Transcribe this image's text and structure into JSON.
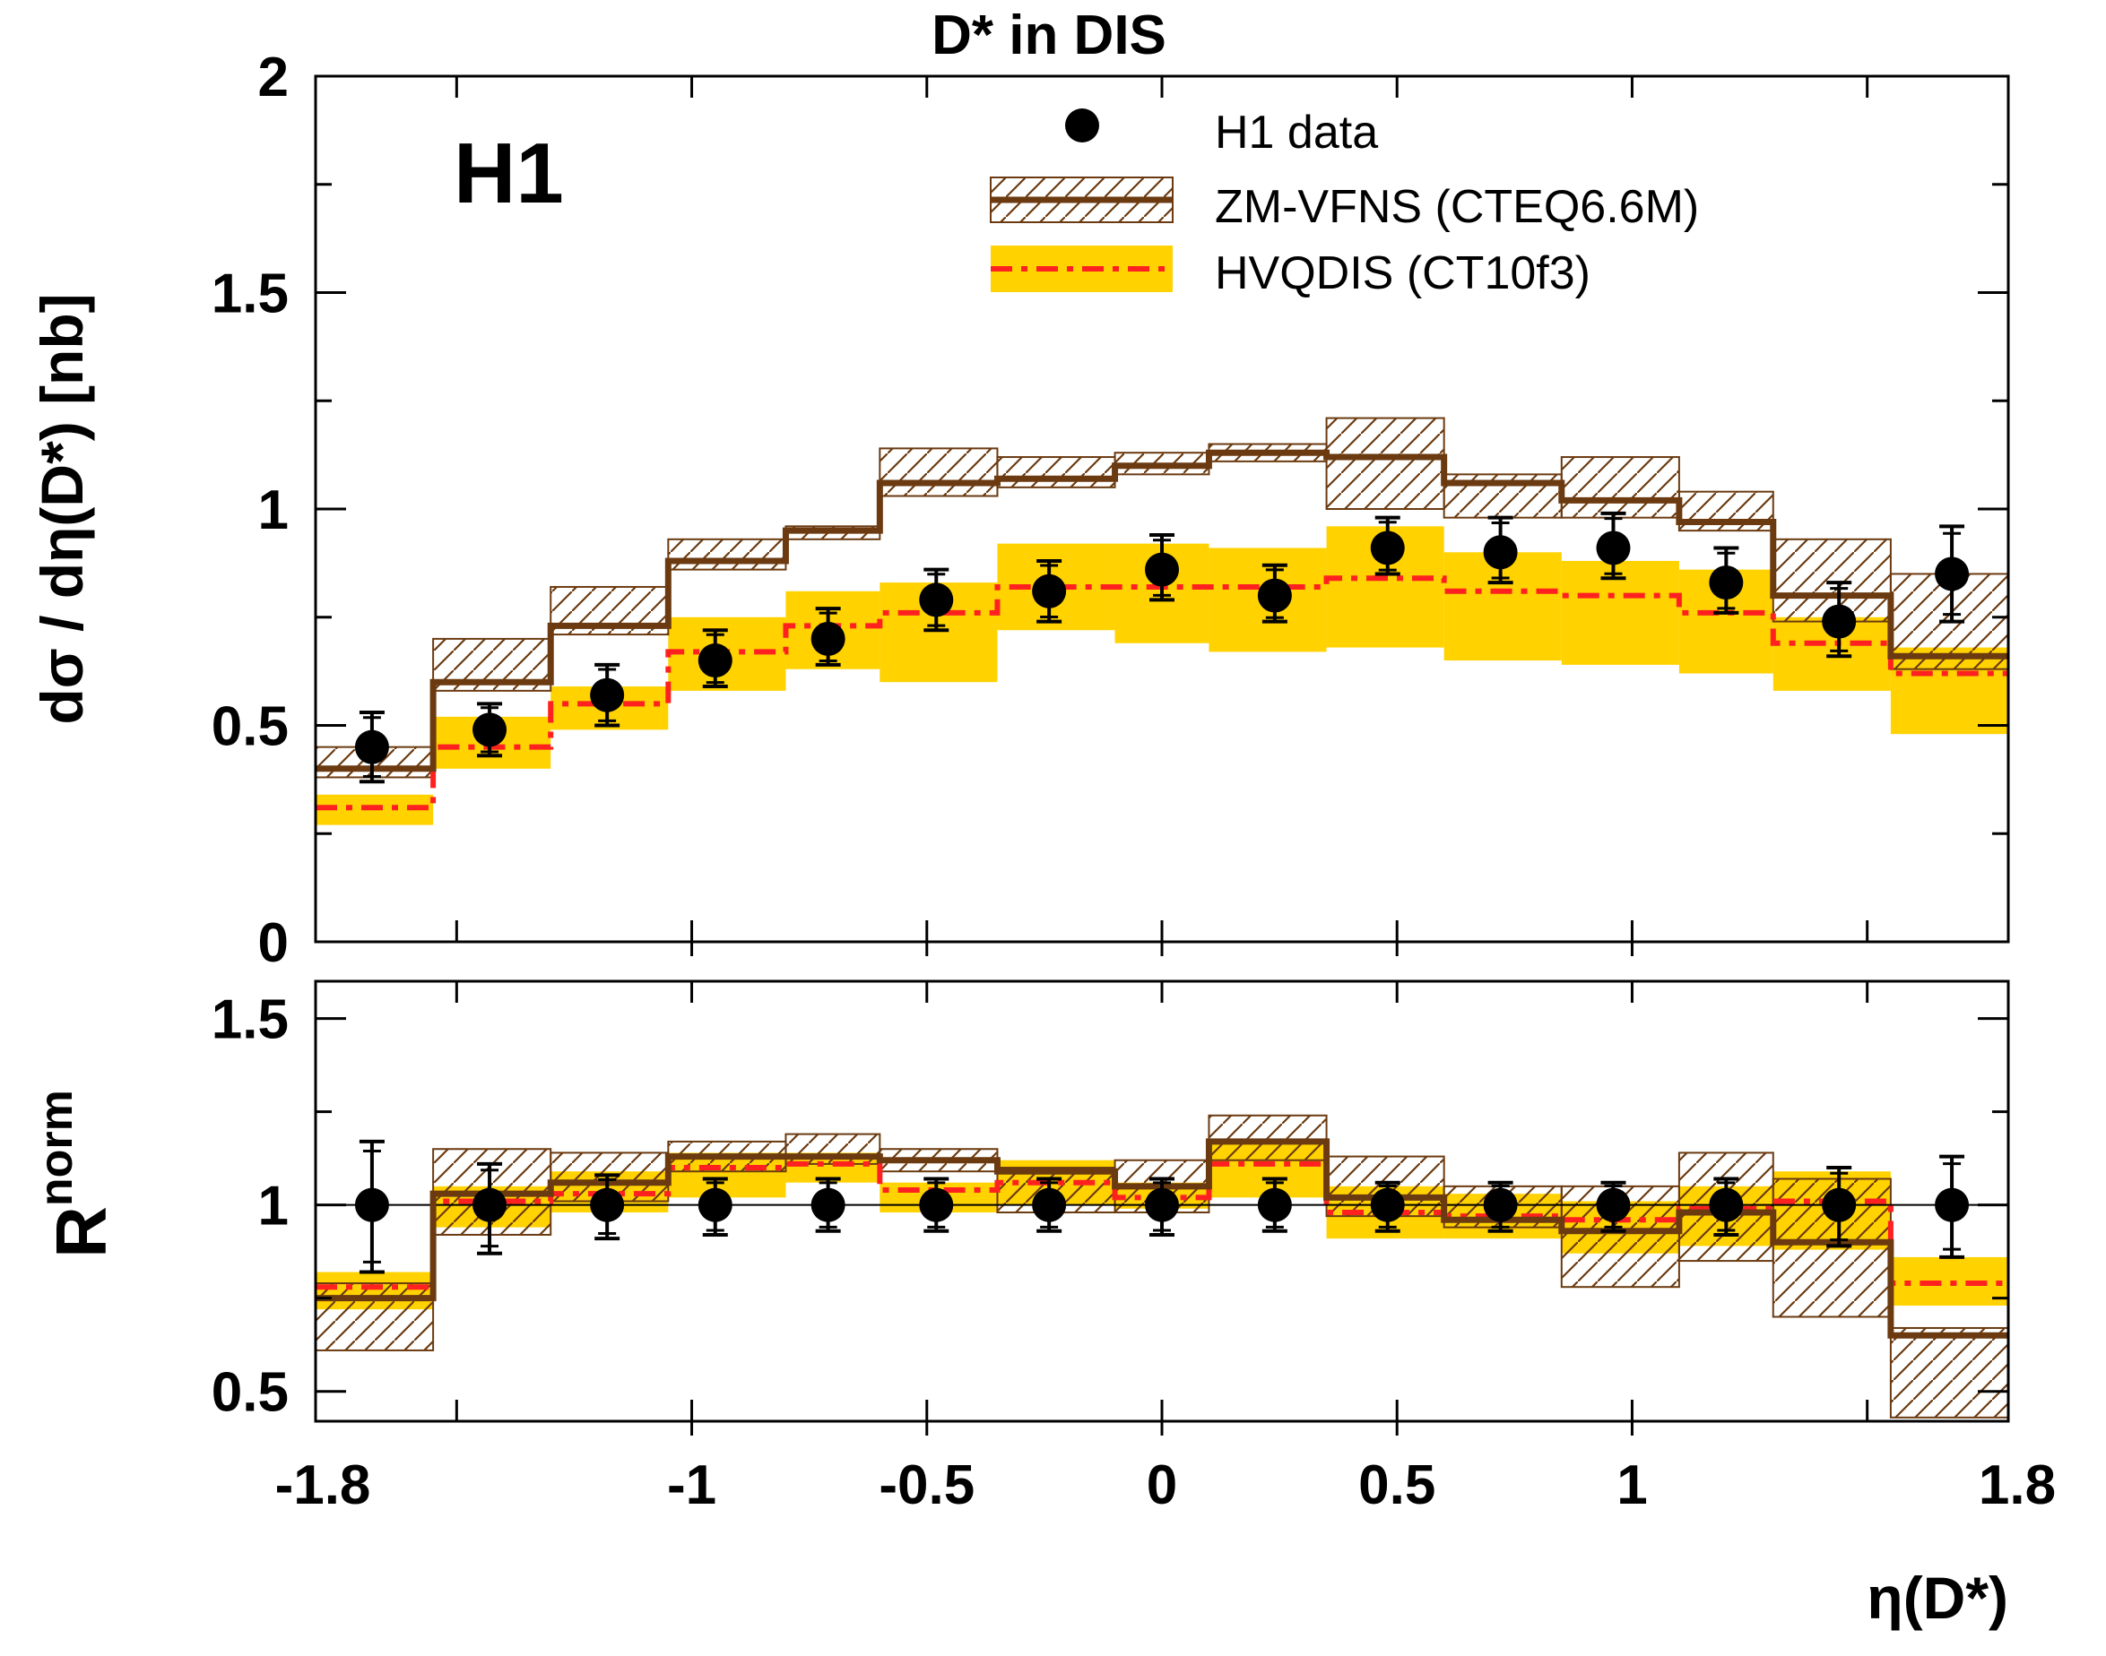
{
  "chart_data": [
    {
      "type": "line",
      "panel": "cross-section",
      "title": "D* in DIS",
      "experiment_label": "H1",
      "xlabel": "",
      "ylabel": "dσ / dη(D*) [nb]",
      "xlim": [
        -1.8,
        1.8
      ],
      "ylim": [
        0,
        2
      ],
      "y_ticks": [
        0,
        0.5,
        1,
        1.5,
        2
      ],
      "y_tick_labels": [
        "0",
        "0.5",
        "1",
        "1.5",
        "2"
      ],
      "bin_edges": [
        -1.8,
        -1.55,
        -1.3,
        -1.05,
        -0.8,
        -0.6,
        -0.35,
        -0.1,
        0.1,
        0.35,
        0.6,
        0.85,
        1.1,
        1.3,
        1.55,
        1.8
      ],
      "legend_position": "top-right",
      "series": [
        {
          "name": "H1 data",
          "kind": "points",
          "color": "#000000",
          "x": [
            -1.68,
            -1.43,
            -1.18,
            -0.95,
            -0.71,
            -0.48,
            -0.24,
            0.0,
            0.24,
            0.48,
            0.72,
            0.96,
            1.2,
            1.44,
            1.68
          ],
          "y": [
            0.45,
            0.49,
            0.57,
            0.65,
            0.7,
            0.79,
            0.81,
            0.86,
            0.8,
            0.91,
            0.9,
            0.91,
            0.83,
            0.74,
            0.85
          ],
          "err_up": [
            0.08,
            0.06,
            0.07,
            0.07,
            0.07,
            0.07,
            0.07,
            0.08,
            0.07,
            0.07,
            0.08,
            0.08,
            0.08,
            0.09,
            0.11
          ],
          "err_down": [
            0.08,
            0.06,
            0.07,
            0.06,
            0.06,
            0.07,
            0.07,
            0.07,
            0.06,
            0.06,
            0.07,
            0.07,
            0.07,
            0.08,
            0.11
          ]
        },
        {
          "name": "ZM-VFNS (CTEQ6.6M)",
          "kind": "step",
          "color": "#6b3a10",
          "values": [
            0.4,
            0.6,
            0.73,
            0.88,
            0.95,
            1.06,
            1.07,
            1.1,
            1.13,
            1.12,
            1.06,
            1.02,
            0.97,
            0.8,
            0.66
          ],
          "band_low": [
            0.38,
            0.58,
            0.71,
            0.86,
            0.93,
            1.03,
            1.05,
            1.08,
            1.11,
            1.0,
            0.98,
            0.98,
            0.95,
            0.74,
            0.63
          ],
          "band_high": [
            0.45,
            0.7,
            0.82,
            0.93,
            0.96,
            1.14,
            1.12,
            1.13,
            1.15,
            1.21,
            1.08,
            1.12,
            1.04,
            0.93,
            0.85
          ]
        },
        {
          "name": "HVQDIS (CT10f3)",
          "kind": "step",
          "color": "#ff2020",
          "band_color": "#ffd200",
          "values": [
            0.31,
            0.45,
            0.55,
            0.67,
            0.73,
            0.76,
            0.82,
            0.82,
            0.82,
            0.84,
            0.81,
            0.8,
            0.76,
            0.69,
            0.62
          ],
          "band_low": [
            0.27,
            0.4,
            0.49,
            0.58,
            0.63,
            0.6,
            0.72,
            0.69,
            0.67,
            0.68,
            0.65,
            0.64,
            0.62,
            0.58,
            0.48
          ],
          "band_high": [
            0.34,
            0.52,
            0.59,
            0.75,
            0.81,
            0.83,
            0.92,
            0.92,
            0.91,
            0.96,
            0.9,
            0.88,
            0.86,
            0.75,
            0.68
          ]
        }
      ]
    },
    {
      "type": "line",
      "panel": "ratio",
      "xlabel": "η(D*)",
      "ylabel_main": "R",
      "ylabel_sup": "norm",
      "xlim": [
        -1.8,
        1.8
      ],
      "ylim": [
        0.42,
        1.6
      ],
      "reference_line": 1,
      "x_ticks": [
        -1.8,
        -1,
        -0.5,
        0,
        0.5,
        1,
        1.8
      ],
      "x_tick_labels": [
        "-1.8",
        "-1",
        "-0.5",
        "0",
        "0.5",
        "1",
        "1.8"
      ],
      "y_ticks": [
        0.5,
        1,
        1.5
      ],
      "y_tick_labels": [
        "0.5",
        "1",
        "1.5"
      ],
      "bin_edges": [
        -1.8,
        -1.55,
        -1.3,
        -1.05,
        -0.8,
        -0.6,
        -0.35,
        -0.1,
        0.1,
        0.35,
        0.6,
        0.85,
        1.1,
        1.3,
        1.55,
        1.8
      ],
      "series": [
        {
          "name": "H1 data",
          "kind": "points",
          "color": "#000000",
          "x": [
            -1.68,
            -1.43,
            -1.18,
            -0.95,
            -0.71,
            -0.48,
            -0.24,
            0.0,
            0.24,
            0.48,
            0.72,
            0.96,
            1.2,
            1.44,
            1.68
          ],
          "y": [
            1,
            1,
            1,
            1,
            1,
            1,
            1,
            1,
            1,
            1,
            1,
            1,
            1,
            1,
            1
          ],
          "err_up": [
            0.17,
            0.11,
            0.08,
            0.07,
            0.07,
            0.07,
            0.07,
            0.07,
            0.07,
            0.06,
            0.06,
            0.06,
            0.07,
            0.1,
            0.13
          ],
          "err_down": [
            0.18,
            0.13,
            0.09,
            0.08,
            0.07,
            0.07,
            0.07,
            0.08,
            0.07,
            0.07,
            0.07,
            0.07,
            0.08,
            0.11,
            0.14
          ]
        },
        {
          "name": "ZM-VFNS (CTEQ6.6M)",
          "kind": "step",
          "color": "#6b3a10",
          "values": [
            0.75,
            1.03,
            1.06,
            1.13,
            1.13,
            1.12,
            1.09,
            1.05,
            1.17,
            1.02,
            0.96,
            0.93,
            0.98,
            0.9,
            0.65
          ],
          "band_low": [
            0.61,
            0.92,
            1.01,
            1.09,
            1.11,
            1.09,
            0.98,
            0.98,
            1.12,
            0.97,
            0.94,
            0.78,
            0.85,
            0.7,
            0.43
          ],
          "band_high": [
            0.79,
            1.15,
            1.14,
            1.17,
            1.19,
            1.15,
            1.1,
            1.12,
            1.24,
            1.13,
            1.05,
            1.05,
            1.14,
            1.07,
            0.67
          ]
        },
        {
          "name": "HVQDIS (CT10f3)",
          "kind": "step",
          "color": "#ff2020",
          "band_color": "#ffd200",
          "values": [
            0.78,
            1.01,
            1.03,
            1.1,
            1.11,
            1.04,
            1.06,
            1.02,
            1.11,
            0.98,
            0.97,
            0.96,
            0.99,
            1.01,
            0.79
          ],
          "band_low": [
            0.72,
            0.94,
            0.98,
            1.02,
            1.06,
            0.98,
            1.0,
            0.99,
            1.02,
            0.91,
            0.91,
            0.87,
            0.89,
            0.88,
            0.73
          ],
          "band_high": [
            0.82,
            1.05,
            1.09,
            1.14,
            1.14,
            1.06,
            1.12,
            1.06,
            1.17,
            1.05,
            1.03,
            1.01,
            1.05,
            1.09,
            0.86
          ]
        }
      ]
    }
  ]
}
